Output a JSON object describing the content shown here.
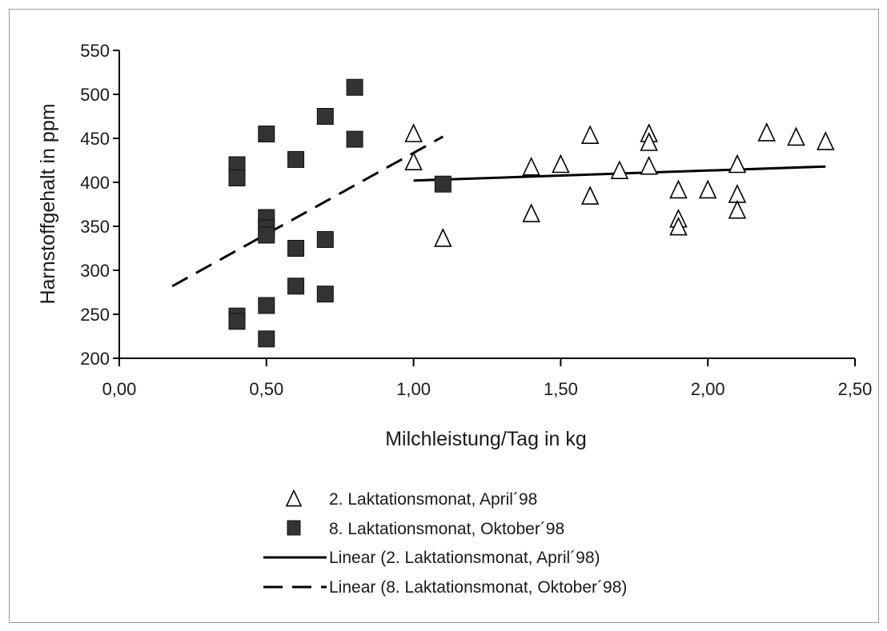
{
  "chart_data": {
    "type": "scatter",
    "title": "",
    "xlabel": "Milchleistung/Tag in kg",
    "ylabel": "Harnstoffgehalt in ppm",
    "xlim": [
      0,
      2.5
    ],
    "ylim": [
      200,
      550
    ],
    "x_ticks": [
      0,
      0.5,
      1,
      1.5,
      2,
      2.5
    ],
    "x_tick_labels": [
      "0,00",
      "0,50",
      "1,00",
      "1,50",
      "2,00",
      "2,50"
    ],
    "y_ticks": [
      200,
      250,
      300,
      350,
      400,
      450,
      500,
      550
    ],
    "y_tick_labels": [
      "200",
      "250",
      "300",
      "350",
      "400",
      "450",
      "500",
      "550"
    ],
    "grid": false,
    "legend_position": "bottom",
    "series": [
      {
        "name": "2. Laktationsmonat, April´98",
        "marker": "triangle-open",
        "color": "#000000",
        "points": [
          [
            1.0,
            455
          ],
          [
            1.0,
            423
          ],
          [
            1.1,
            336
          ],
          [
            1.4,
            417
          ],
          [
            1.4,
            364
          ],
          [
            1.5,
            420
          ],
          [
            1.6,
            453
          ],
          [
            1.6,
            384
          ],
          [
            1.7,
            413
          ],
          [
            1.8,
            455
          ],
          [
            1.8,
            445
          ],
          [
            1.8,
            418
          ],
          [
            1.9,
            391
          ],
          [
            1.9,
            358
          ],
          [
            1.9,
            349
          ],
          [
            2.0,
            391
          ],
          [
            2.1,
            420
          ],
          [
            2.1,
            386
          ],
          [
            2.1,
            368
          ],
          [
            2.2,
            456
          ],
          [
            2.3,
            451
          ],
          [
            2.4,
            446
          ]
        ]
      },
      {
        "name": "8. Laktationsmonat, Oktober´98",
        "marker": "square-filled",
        "color": "#333333",
        "points": [
          [
            0.4,
            420
          ],
          [
            0.4,
            405
          ],
          [
            0.4,
            248
          ],
          [
            0.4,
            242
          ],
          [
            0.5,
            455
          ],
          [
            0.5,
            360
          ],
          [
            0.5,
            348
          ],
          [
            0.5,
            340
          ],
          [
            0.5,
            260
          ],
          [
            0.5,
            222
          ],
          [
            0.6,
            426
          ],
          [
            0.6,
            325
          ],
          [
            0.6,
            282
          ],
          [
            0.7,
            475
          ],
          [
            0.7,
            335
          ],
          [
            0.7,
            273
          ],
          [
            0.8,
            508
          ],
          [
            0.8,
            449
          ],
          [
            1.1,
            398
          ]
        ]
      }
    ],
    "trendlines": [
      {
        "name": "Linear (2. Laktationsmonat, April´98)",
        "style": "solid",
        "color": "#000000",
        "x": [
          1.0,
          2.4
        ],
        "y": [
          402,
          418
        ]
      },
      {
        "name": "Linear (8. Laktationsmonat, Oktober´98)",
        "style": "dashed",
        "color": "#000000",
        "x": [
          0.18,
          1.1
        ],
        "y": [
          282,
          452
        ]
      }
    ]
  }
}
